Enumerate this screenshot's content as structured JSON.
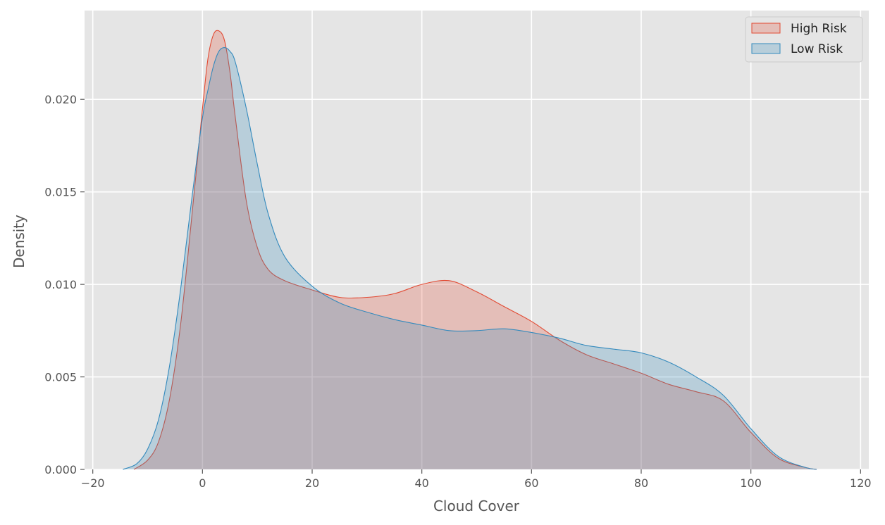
{
  "chart_data": {
    "type": "area",
    "xlabel": "Cloud Cover",
    "ylabel": "Density",
    "xlim": [
      -21.5,
      121.5
    ],
    "ylim": [
      0,
      0.0248
    ],
    "xticks": [
      -20,
      0,
      20,
      40,
      60,
      80,
      100,
      120
    ],
    "xtick_labels": [
      "−20",
      "0",
      "20",
      "40",
      "60",
      "80",
      "100",
      "120"
    ],
    "yticks": [
      0,
      0.005,
      0.01,
      0.015,
      0.02
    ],
    "ytick_labels": [
      "0.000",
      "0.005",
      "0.010",
      "0.015",
      "0.020"
    ],
    "grid": true,
    "legend_position": "top-right",
    "series": [
      {
        "name": "High Risk",
        "color": "#E24A33",
        "x": [
          -12.5,
          -10,
          -8,
          -6,
          -4,
          -2,
          0,
          1,
          2,
          3,
          4,
          5,
          6,
          8,
          10,
          12,
          15,
          20,
          25,
          30,
          35,
          40,
          45,
          50,
          55,
          60,
          65,
          70,
          75,
          80,
          85,
          90,
          95,
          100,
          105,
          110,
          112
        ],
        "y": [
          0,
          0.0005,
          0.0015,
          0.0038,
          0.0078,
          0.0135,
          0.0195,
          0.0222,
          0.0235,
          0.0237,
          0.0232,
          0.0215,
          0.019,
          0.0145,
          0.012,
          0.0108,
          0.0102,
          0.0097,
          0.0093,
          0.0093,
          0.0095,
          0.01,
          0.0102,
          0.0096,
          0.0088,
          0.008,
          0.007,
          0.0062,
          0.0057,
          0.0052,
          0.0046,
          0.0042,
          0.0037,
          0.002,
          0.0006,
          0.0001,
          0
        ]
      },
      {
        "name": "Low Risk",
        "color": "#348ABD",
        "x": [
          -14.5,
          -12,
          -10,
          -8,
          -6,
          -4,
          -2,
          0,
          1,
          2,
          3,
          4,
          5,
          6,
          8,
          10,
          12,
          15,
          20,
          25,
          30,
          35,
          40,
          45,
          50,
          55,
          60,
          65,
          70,
          75,
          80,
          85,
          90,
          95,
          100,
          105,
          110,
          112
        ],
        "y": [
          0,
          0.0003,
          0.0011,
          0.0027,
          0.0056,
          0.0097,
          0.0145,
          0.019,
          0.0205,
          0.0218,
          0.0226,
          0.0228,
          0.0226,
          0.022,
          0.0195,
          0.0165,
          0.0138,
          0.0115,
          0.0099,
          0.009,
          0.0085,
          0.0081,
          0.0078,
          0.0075,
          0.0075,
          0.0076,
          0.0074,
          0.0071,
          0.0067,
          0.0065,
          0.0063,
          0.0058,
          0.005,
          0.004,
          0.0022,
          0.0007,
          0.0001,
          0
        ]
      }
    ]
  }
}
